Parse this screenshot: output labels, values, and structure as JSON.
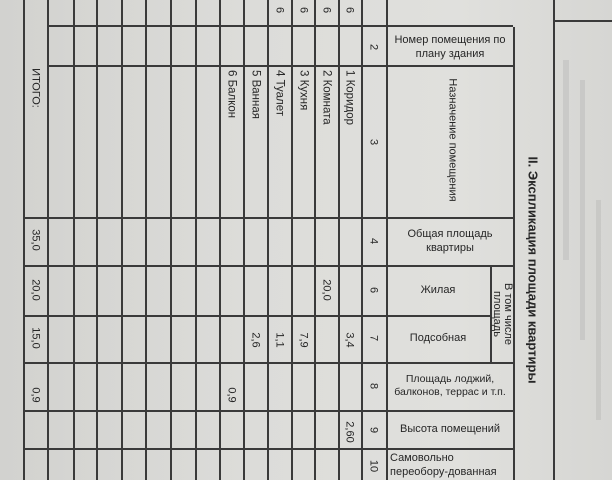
{
  "document": {
    "title": "II. Экспликация площади квартиры",
    "headers": {
      "room_number": "Номер помещения по плану здания",
      "room_purpose": "Назначение помещения",
      "total_area": "Общая площадь квартиры",
      "including_area": "В том числе площадь",
      "living": "Жилая",
      "auxiliary": "Подсобная",
      "loggia_area": "Площадь лоджий, балконов, террас и т.п.",
      "height": "Высота помещений",
      "unauthorized": "Самовольно переобору-дованная"
    },
    "column_numbers": [
      "2",
      "3",
      "4",
      "6",
      "7",
      "8",
      "9",
      "10"
    ],
    "top_row_digits": [
      "6",
      "6",
      "6",
      "6"
    ],
    "rows": [
      {
        "name": "1 Коридор",
        "auxiliary": "3,4",
        "height": "2,60"
      },
      {
        "name": "2 Комната",
        "living": "20,0"
      },
      {
        "name": "3 Кухня",
        "auxiliary": "7,9"
      },
      {
        "name": "4 Туалет",
        "auxiliary": "1,1"
      },
      {
        "name": "5 Ванная",
        "auxiliary": "2,6"
      },
      {
        "name": "6 Балкон",
        "loggia": "0,9"
      }
    ],
    "total": {
      "label": "ИТОГО:",
      "total_area": "35,0",
      "living": "20,0",
      "auxiliary": "15,0",
      "loggia": "0,9"
    }
  }
}
